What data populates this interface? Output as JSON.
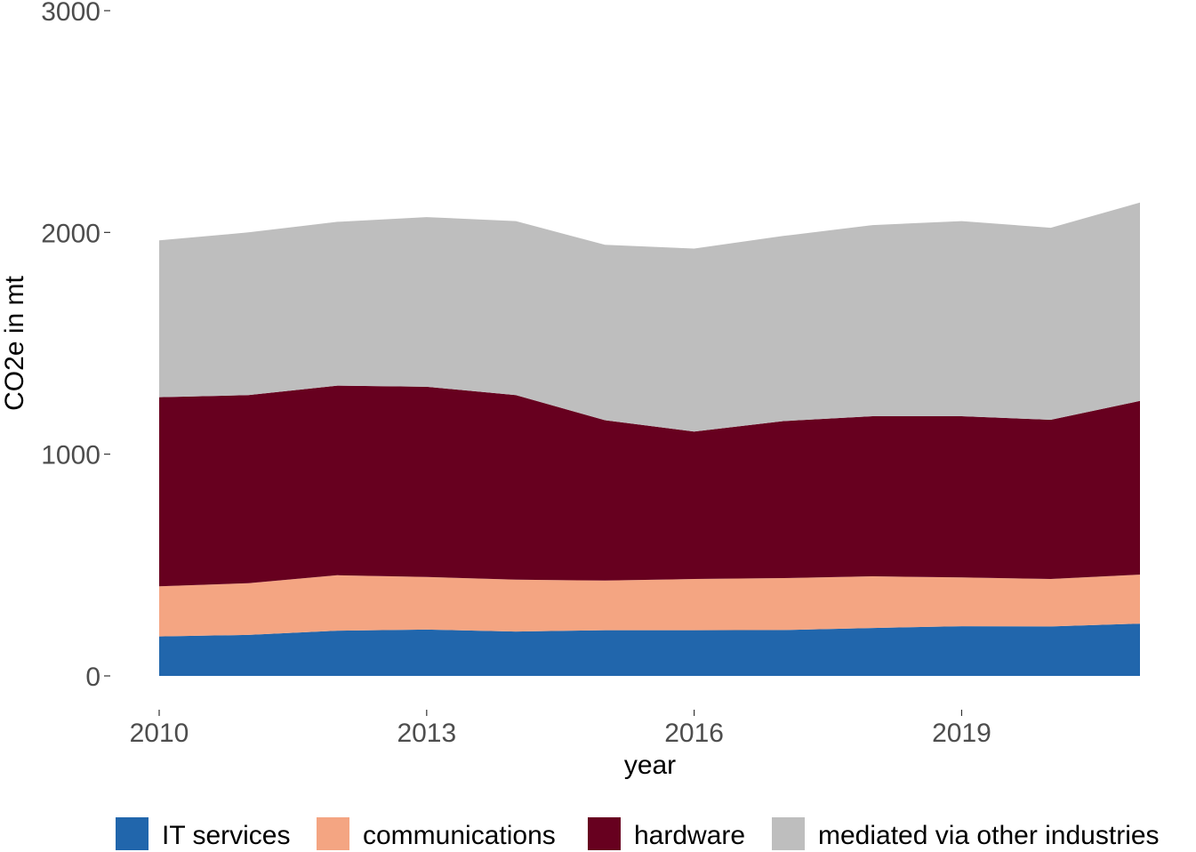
{
  "chart_data": {
    "type": "area",
    "stacked": true,
    "title": "",
    "xlabel": "year",
    "ylabel": "CO2e in mt",
    "x": [
      2010,
      2011,
      2012,
      2013,
      2014,
      2015,
      2016,
      2017,
      2018,
      2019,
      2020,
      2021
    ],
    "xlim": [
      2010,
      2021
    ],
    "ylim": [
      0,
      3000
    ],
    "x_ticks": [
      2010,
      2013,
      2016,
      2019
    ],
    "x_tick_labels": [
      "2010",
      "2013",
      "2016",
      "2019"
    ],
    "y_ticks": [
      0,
      1000,
      2000,
      3000
    ],
    "y_tick_labels": [
      "0",
      "1000",
      "2000",
      "3000"
    ],
    "grid": false,
    "legend_position": "bottom",
    "series": [
      {
        "name": "IT services",
        "color": "#2166ac",
        "values": [
          178,
          185,
          204,
          209,
          200,
          206,
          206,
          207,
          216,
          224,
          223,
          236
        ]
      },
      {
        "name": "communications",
        "color": "#f4a582",
        "values": [
          226,
          233,
          250,
          237,
          234,
          224,
          231,
          234,
          233,
          220,
          214,
          221
        ]
      },
      {
        "name": "hardware",
        "color": "#67001f",
        "values": [
          853,
          848,
          855,
          858,
          832,
          723,
          665,
          708,
          722,
          727,
          718,
          783
        ]
      },
      {
        "name": "mediated via other industries",
        "color": "#bebebe",
        "values": [
          707,
          734,
          739,
          765,
          785,
          791,
          825,
          835,
          862,
          880,
          866,
          895
        ]
      }
    ]
  }
}
